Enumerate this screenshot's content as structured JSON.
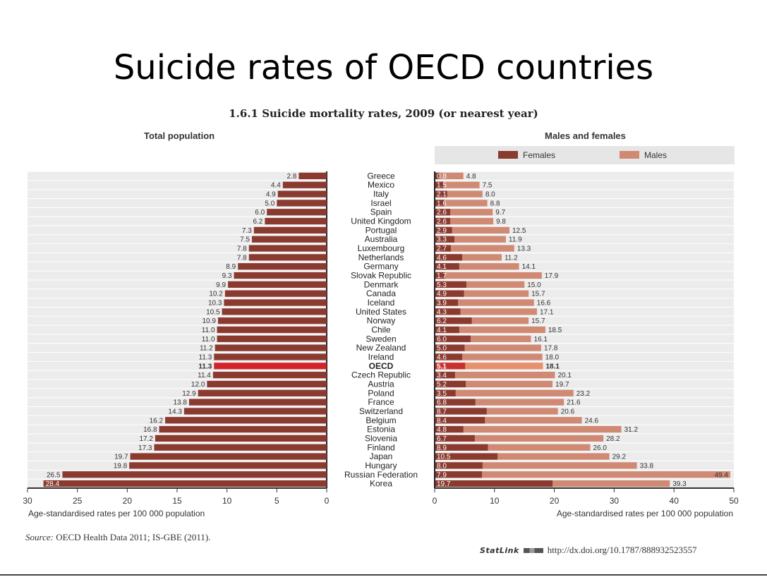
{
  "slide": {
    "title": "Suicide rates of OECD countries"
  },
  "figure": {
    "title": "1.6.1 Suicide mortality rates, 2009 (or nearest year)",
    "source_label": "Source:",
    "source_text": "OECD Health Data 2011; IS-GBE (2011).",
    "statlink_brand": "StatLink",
    "statlink_url": "http://dx.doi.org/10.1787/888932523557"
  },
  "colors": {
    "total_bar": "#8b3a2f",
    "highlight_total": "#d2232a",
    "females": "#8b3a2f",
    "males": "#d08a74",
    "highlight_males": "#e8906e",
    "highlight_females": "#c8312f",
    "legend_bg": "#e6e6e6",
    "grid": "#bfbfbf"
  },
  "chart_data": [
    {
      "type": "bar",
      "orientation": "horizontal",
      "title": "Total population",
      "xlabel": "Age-standardised rates per 100 000 population",
      "xlim": [
        30,
        0
      ],
      "xticks": [
        30,
        25,
        20,
        15,
        10,
        5,
        0
      ],
      "categories": [
        "Greece",
        "Mexico",
        "Italy",
        "Israel",
        "Spain",
        "United Kingdom",
        "Portugal",
        "Australia",
        "Luxembourg",
        "Netherlands",
        "Germany",
        "Slovak Republic",
        "Denmark",
        "Canada",
        "Iceland",
        "United States",
        "Norway",
        "Chile",
        "Sweden",
        "New Zealand",
        "Ireland",
        "OECD",
        "Czech Republic",
        "Austria",
        "Poland",
        "France",
        "Switzerland",
        "Belgium",
        "Estonia",
        "Slovenia",
        "Finland",
        "Japan",
        "Hungary",
        "Russian Federation",
        "Korea"
      ],
      "highlight": "OECD",
      "values": [
        2.8,
        4.4,
        4.9,
        5.0,
        6.0,
        6.2,
        7.3,
        7.5,
        7.8,
        7.8,
        8.9,
        9.3,
        9.9,
        10.2,
        10.3,
        10.5,
        10.9,
        11.0,
        11.0,
        11.2,
        11.3,
        11.3,
        11.4,
        12.0,
        12.9,
        13.8,
        14.3,
        16.2,
        16.8,
        17.2,
        17.3,
        19.7,
        19.8,
        26.5,
        28.4
      ],
      "value_labels": [
        "2.8",
        "4.4",
        "4.9",
        "5.0",
        "6.0",
        "6.2",
        "7.3",
        "7.5",
        "7.8",
        "7.8",
        "8.9",
        "9.3",
        "9.9",
        "10.2",
        "10.3",
        "10.5",
        "10.9",
        "11.0",
        "11.0",
        "11.2",
        "11.3",
        "11.3",
        "11.4",
        "12.0",
        "12.9",
        "13.8",
        "14.3",
        "16.2",
        "16.8",
        "17.2",
        "17.3",
        "19.7",
        "19.8",
        "26.5",
        "28.4"
      ]
    },
    {
      "type": "bar",
      "orientation": "horizontal",
      "title": "Males and females",
      "xlabel": "Age-standardised rates per 100 000 population",
      "xlim": [
        0,
        50
      ],
      "xticks": [
        0,
        10,
        20,
        30,
        40,
        50
      ],
      "legend": {
        "position": "top"
      },
      "series": [
        {
          "name": "Females",
          "values": [
            0.8,
            1.5,
            2.1,
            1.6,
            2.6,
            2.6,
            2.9,
            3.3,
            2.7,
            4.6,
            4.1,
            1.7,
            5.3,
            4.9,
            3.9,
            4.3,
            6.2,
            4.1,
            6.0,
            5.0,
            4.6,
            5.1,
            3.4,
            5.2,
            3.5,
            6.8,
            8.7,
            8.4,
            4.8,
            6.7,
            8.9,
            10.5,
            8.0,
            7.9,
            19.7
          ],
          "value_labels": [
            "0.8",
            "1.5",
            "2.1",
            "1.6",
            "2.6",
            "2.6",
            "2.9",
            "3.3",
            "2.7",
            "4.6",
            "4.1",
            "1.7",
            "5.3",
            "4.9",
            "3.9",
            "4.3",
            "6.2",
            "4.1",
            "6.0",
            "5.0",
            "4.6",
            "5.1",
            "3.4",
            "5.2",
            "3.5",
            "6.8",
            "8.7",
            "8.4",
            "4.8",
            "6.7",
            "8.9",
            "10.5",
            "8.0",
            "7.9",
            "19.7"
          ]
        },
        {
          "name": "Males",
          "values": [
            4.8,
            7.5,
            8.0,
            8.8,
            9.7,
            9.8,
            12.5,
            11.9,
            13.3,
            11.2,
            14.1,
            17.9,
            15.0,
            15.7,
            16.6,
            17.1,
            15.7,
            18.5,
            16.1,
            17.8,
            18.0,
            18.1,
            20.1,
            19.7,
            23.2,
            21.6,
            20.6,
            24.6,
            31.2,
            28.2,
            26.0,
            29.2,
            33.8,
            49.4,
            39.3
          ],
          "value_labels": [
            "4.8",
            "7.5",
            "8.0",
            "8.8",
            "9.7",
            "9.8",
            "12.5",
            "11.9",
            "13.3",
            "11.2",
            "14.1",
            "17.9",
            "15.0",
            "15.7",
            "16.6",
            "17.1",
            "15.7",
            "18.5",
            "16.1",
            "17.8",
            "18.0",
            "18.1",
            "20.1",
            "19.7",
            "23.2",
            "21.6",
            "20.6",
            "24.6",
            "31.2",
            "28.2",
            "26.0",
            "29.2",
            "33.8",
            "49.4",
            "39.3"
          ]
        }
      ]
    }
  ]
}
